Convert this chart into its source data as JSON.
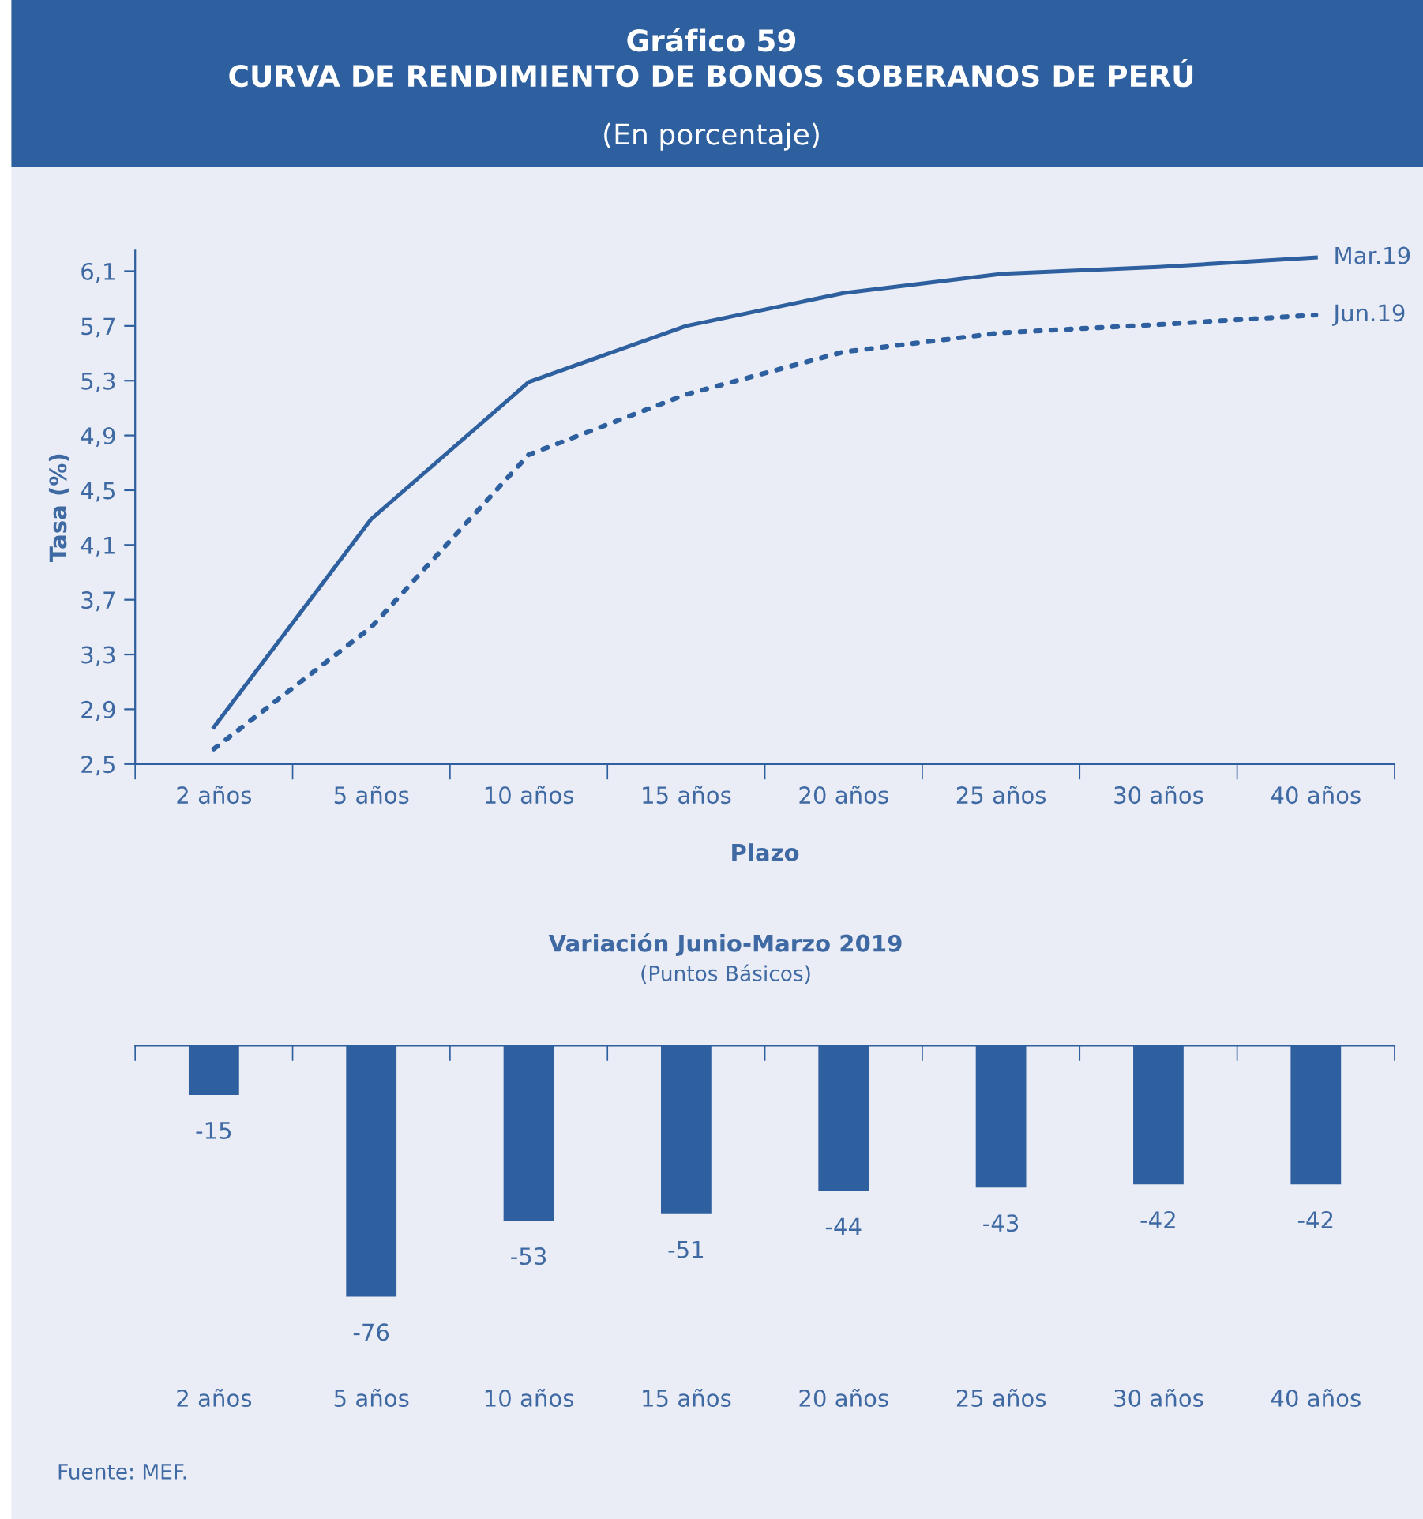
{
  "chart_data": [
    {
      "type": "line",
      "title": "Gráfico 59\nCURVA DE RENDIMIENTO DE BONOS SOBERANOS DE PERÚ",
      "subtitle": "(En porcentaje)",
      "xlabel": "Plazo",
      "ylabel": "Tasa (%)",
      "categories": [
        "2 años",
        "5 años",
        "10 años",
        "15 años",
        "20 años",
        "25 años",
        "30 años",
        "40 años"
      ],
      "series": [
        {
          "name": "Mar.19",
          "color": "#2e5f9e",
          "line_style": "solid",
          "values": [
            2.77,
            4.29,
            5.29,
            5.7,
            5.94,
            6.08,
            6.13,
            6.2
          ]
        },
        {
          "name": "Jun.19",
          "color": "#2e5f9e",
          "line_style": "dotted",
          "values": [
            2.61,
            3.5,
            4.76,
            5.2,
            5.51,
            5.65,
            5.71,
            5.78
          ]
        }
      ],
      "ylim": [
        2.5,
        6.25
      ],
      "yticks": [
        {
          "value": 2.5,
          "label": "2,5"
        },
        {
          "value": 2.9,
          "label": "2,9"
        },
        {
          "value": 3.3,
          "label": "3,3"
        },
        {
          "value": 3.7,
          "label": "3,7"
        },
        {
          "value": 4.1,
          "label": "4,1"
        },
        {
          "value": 4.5,
          "label": "4,5"
        },
        {
          "value": 4.9,
          "label": "4,9"
        },
        {
          "value": 5.3,
          "label": "5,3"
        },
        {
          "value": 5.7,
          "label": "5,7"
        },
        {
          "value": 6.1,
          "label": "6,1"
        }
      ],
      "grid": false,
      "legend": false,
      "marker": "none"
    },
    {
      "type": "bar",
      "title": "Variación Junio-Marzo 2019",
      "subtitle": "(Puntos Básicos)",
      "categories": [
        "2 años",
        "5 años",
        "10 años",
        "15 años",
        "20 años",
        "25 años",
        "30 años",
        "40 años"
      ],
      "values": [
        -15,
        -76,
        -53,
        -51,
        -44,
        -43,
        -42,
        -42
      ],
      "color": "#2e5f9e",
      "data_labels": true,
      "grid": false,
      "legend": false,
      "annotations": [
        "Fuente: MEF."
      ]
    }
  ]
}
